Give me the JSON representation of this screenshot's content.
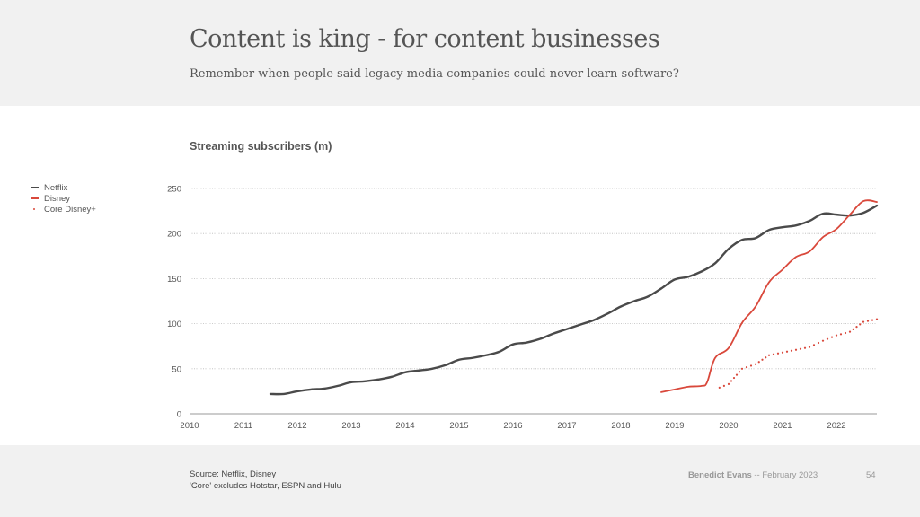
{
  "header": {
    "title": "Content is king - for content businesses",
    "subtitle": "Remember when people said legacy media companies could never learn software?"
  },
  "footer": {
    "source_line1": "Source: Netflix, Disney",
    "source_line2": "'Core' excludes Hotstar, ESPN and Hulu",
    "author": "Benedict Evans",
    "separator": "--",
    "date": "February 2023",
    "page_number": "54"
  },
  "colors": {
    "netflix": "#4a4a4a",
    "disney": "#d9483b",
    "grid": "#bbbbbb",
    "axis": "#999999"
  },
  "chart_data": {
    "type": "line",
    "title": "Streaming subscribers (m)",
    "xlabel": "",
    "ylabel": "",
    "xlim": [
      2010,
      2022.75
    ],
    "ylim": [
      0,
      250
    ],
    "x_ticks": [
      "2010",
      "2011",
      "2012",
      "2013",
      "2014",
      "2015",
      "2016",
      "2017",
      "2018",
      "2019",
      "2020",
      "2021",
      "2022"
    ],
    "y_ticks": [
      "0",
      "50",
      "100",
      "150",
      "200",
      "250"
    ],
    "grid": true,
    "legend_position": "left",
    "legend": [
      "Netflix",
      "Disney",
      "Core Disney+"
    ],
    "series": [
      {
        "name": "Netflix",
        "style": "solid",
        "x": [
          2011.5,
          2011.75,
          2012.0,
          2012.25,
          2012.5,
          2012.75,
          2013.0,
          2013.25,
          2013.5,
          2013.75,
          2014.0,
          2014.25,
          2014.5,
          2014.75,
          2015.0,
          2015.25,
          2015.5,
          2015.75,
          2016.0,
          2016.25,
          2016.5,
          2016.75,
          2017.0,
          2017.25,
          2017.5,
          2017.75,
          2018.0,
          2018.25,
          2018.5,
          2018.75,
          2019.0,
          2019.25,
          2019.5,
          2019.75,
          2020.0,
          2020.25,
          2020.5,
          2020.75,
          2021.0,
          2021.25,
          2021.5,
          2021.75,
          2022.0,
          2022.25,
          2022.5,
          2022.75
        ],
        "values": [
          22,
          22,
          25,
          27,
          28,
          31,
          35,
          36,
          38,
          41,
          46,
          48,
          50,
          54,
          60,
          62,
          65,
          69,
          77,
          79,
          83,
          89,
          94,
          99,
          104,
          111,
          119,
          125,
          130,
          139,
          149,
          152,
          158,
          167,
          183,
          193,
          195,
          204,
          207,
          209,
          214,
          222,
          221,
          220,
          223,
          231
        ]
      },
      {
        "name": "Disney",
        "style": "solid",
        "x": [
          2018.75,
          2019.0,
          2019.25,
          2019.5,
          2019.6,
          2019.75,
          2020.0,
          2020.25,
          2020.5,
          2020.75,
          2021.0,
          2021.25,
          2021.5,
          2021.75,
          2022.0,
          2022.25,
          2022.5,
          2022.75
        ],
        "values": [
          24,
          27,
          30,
          31,
          35,
          62,
          73,
          101,
          119,
          146,
          160,
          174,
          180,
          196,
          205,
          221,
          236,
          235
        ]
      },
      {
        "name": "Core Disney+",
        "style": "dotted",
        "x": [
          2019.83,
          2020.0,
          2020.25,
          2020.5,
          2020.75,
          2021.0,
          2021.25,
          2021.5,
          2021.75,
          2022.0,
          2022.25,
          2022.5,
          2022.75
        ],
        "values": [
          29,
          33,
          50,
          55,
          65,
          68,
          71,
          74,
          81,
          87,
          91,
          102,
          105
        ]
      }
    ]
  }
}
